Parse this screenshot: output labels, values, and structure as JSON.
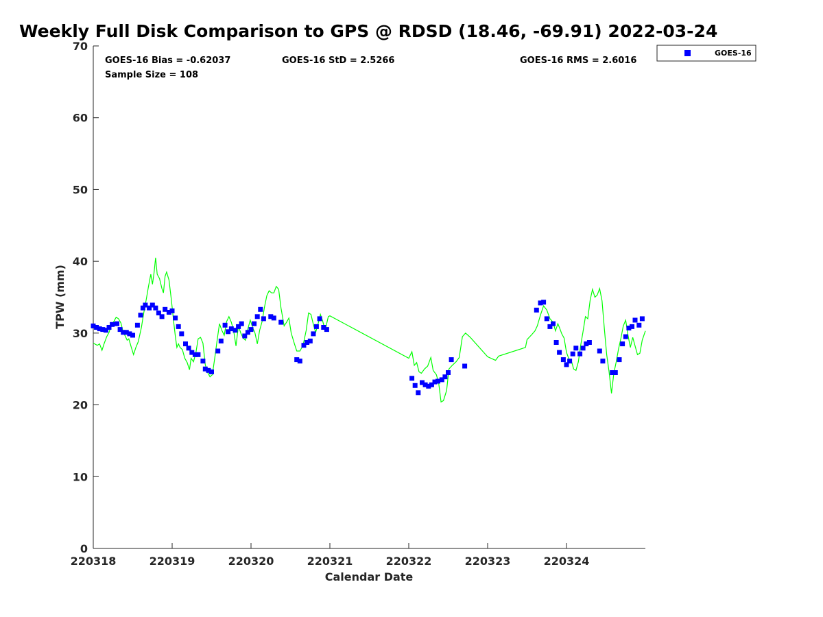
{
  "chart_data": {
    "type": "scatter",
    "title": "Weekly Full Disk Comparison to GPS @ RDSD (18.46, -69.91) 2022-03-24",
    "xlabel": "Calendar Date",
    "ylabel": "TPW (mm)",
    "ylim": [
      0,
      70
    ],
    "xlim": [
      0,
      7
    ],
    "yticks": [
      "0",
      "10",
      "20",
      "30",
      "40",
      "50",
      "60",
      "70"
    ],
    "xticks": [
      "220318",
      "220319",
      "220320",
      "220321",
      "220322",
      "220323",
      "220324"
    ],
    "stats": {
      "bias": "GOES-16 Bias = -0.62037",
      "std": "GOES-16 StD = 2.5266",
      "rms": "GOES-16 RMS = 2.6016",
      "sample": "Sample Size = 108"
    },
    "legend": {
      "position": "top-right, outside plot"
    },
    "series": [
      {
        "name": "GOES-16",
        "kind": "markers",
        "color": "#0000ff",
        "points": [
          [
            0.0,
            31.0
          ],
          [
            0.04,
            30.8
          ],
          [
            0.08,
            30.6
          ],
          [
            0.12,
            30.5
          ],
          [
            0.16,
            30.4
          ],
          [
            0.2,
            30.8
          ],
          [
            0.24,
            31.2
          ],
          [
            0.3,
            31.3
          ],
          [
            0.34,
            30.5
          ],
          [
            0.38,
            30.1
          ],
          [
            0.42,
            30.1
          ],
          [
            0.46,
            29.9
          ],
          [
            0.5,
            29.7
          ],
          [
            0.56,
            31.1
          ],
          [
            0.6,
            32.5
          ],
          [
            0.63,
            33.5
          ],
          [
            0.66,
            33.9
          ],
          [
            0.71,
            33.5
          ],
          [
            0.75,
            33.9
          ],
          [
            0.79,
            33.5
          ],
          [
            0.83,
            32.8
          ],
          [
            0.87,
            32.3
          ],
          [
            0.91,
            33.3
          ],
          [
            0.96,
            32.9
          ],
          [
            1.0,
            33.1
          ],
          [
            1.04,
            32.1
          ],
          [
            1.08,
            30.9
          ],
          [
            1.12,
            29.9
          ],
          [
            1.17,
            28.5
          ],
          [
            1.21,
            27.9
          ],
          [
            1.25,
            27.3
          ],
          [
            1.29,
            27.0
          ],
          [
            1.33,
            27.0
          ],
          [
            1.39,
            26.1
          ],
          [
            1.42,
            25.0
          ],
          [
            1.46,
            24.8
          ],
          [
            1.5,
            24.6
          ],
          [
            1.58,
            27.5
          ],
          [
            1.62,
            28.9
          ],
          [
            1.67,
            31.1
          ],
          [
            1.71,
            30.2
          ],
          [
            1.75,
            30.6
          ],
          [
            1.8,
            30.4
          ],
          [
            1.84,
            30.9
          ],
          [
            1.88,
            31.3
          ],
          [
            1.92,
            29.6
          ],
          [
            1.96,
            30.1
          ],
          [
            2.0,
            30.5
          ],
          [
            2.04,
            31.3
          ],
          [
            2.08,
            32.3
          ],
          [
            2.12,
            33.3
          ],
          [
            2.16,
            32.0
          ],
          [
            2.25,
            32.3
          ],
          [
            2.29,
            32.1
          ],
          [
            2.38,
            31.5
          ],
          [
            2.58,
            26.3
          ],
          [
            2.62,
            26.1
          ],
          [
            2.67,
            28.3
          ],
          [
            2.71,
            28.7
          ],
          [
            2.75,
            28.9
          ],
          [
            2.79,
            29.9
          ],
          [
            2.83,
            30.9
          ],
          [
            2.87,
            32.0
          ],
          [
            2.92,
            30.8
          ],
          [
            2.96,
            30.5
          ],
          [
            4.04,
            23.7
          ],
          [
            4.08,
            22.7
          ],
          [
            4.12,
            21.7
          ],
          [
            4.17,
            23.1
          ],
          [
            4.21,
            22.8
          ],
          [
            4.25,
            22.6
          ],
          [
            4.29,
            22.8
          ],
          [
            4.33,
            23.2
          ],
          [
            4.37,
            23.3
          ],
          [
            4.42,
            23.5
          ],
          [
            4.46,
            23.9
          ],
          [
            4.5,
            24.5
          ],
          [
            4.54,
            26.3
          ],
          [
            4.71,
            25.4
          ],
          [
            5.62,
            33.2
          ],
          [
            5.67,
            34.2
          ],
          [
            5.71,
            34.3
          ],
          [
            5.75,
            32.0
          ],
          [
            5.79,
            30.9
          ],
          [
            5.83,
            31.3
          ],
          [
            5.87,
            28.7
          ],
          [
            5.91,
            27.3
          ],
          [
            5.96,
            26.3
          ],
          [
            6.0,
            25.6
          ],
          [
            6.04,
            26.1
          ],
          [
            6.08,
            27.1
          ],
          [
            6.12,
            27.9
          ],
          [
            6.17,
            27.1
          ],
          [
            6.21,
            27.9
          ],
          [
            6.25,
            28.5
          ],
          [
            6.29,
            28.7
          ],
          [
            6.42,
            27.5
          ],
          [
            6.46,
            26.1
          ],
          [
            6.58,
            24.5
          ],
          [
            6.62,
            24.5
          ],
          [
            6.67,
            26.3
          ],
          [
            6.71,
            28.5
          ],
          [
            6.75,
            29.5
          ],
          [
            6.79,
            30.7
          ],
          [
            6.83,
            30.9
          ],
          [
            6.87,
            31.8
          ],
          [
            6.92,
            31.1
          ],
          [
            6.96,
            32.0
          ]
        ]
      },
      {
        "kind": "line",
        "color": "#00ff00",
        "points": [
          [
            0.0,
            28.6
          ],
          [
            0.05,
            28.3
          ],
          [
            0.08,
            28.5
          ],
          [
            0.11,
            27.6
          ],
          [
            0.14,
            28.6
          ],
          [
            0.17,
            29.5
          ],
          [
            0.2,
            30.1
          ],
          [
            0.23,
            31.2
          ],
          [
            0.26,
            31.6
          ],
          [
            0.29,
            32.2
          ],
          [
            0.32,
            32.0
          ],
          [
            0.35,
            31.4
          ],
          [
            0.38,
            30.1
          ],
          [
            0.4,
            29.7
          ],
          [
            0.43,
            29.0
          ],
          [
            0.45,
            29.2
          ],
          [
            0.48,
            28.1
          ],
          [
            0.51,
            27.0
          ],
          [
            0.54,
            28.0
          ],
          [
            0.57,
            28.8
          ],
          [
            0.61,
            30.8
          ],
          [
            0.64,
            32.8
          ],
          [
            0.67,
            34.6
          ],
          [
            0.7,
            36.5
          ],
          [
            0.73,
            38.2
          ],
          [
            0.75,
            36.8
          ],
          [
            0.77,
            38.4
          ],
          [
            0.79,
            40.5
          ],
          [
            0.81,
            38.2
          ],
          [
            0.84,
            37.6
          ],
          [
            0.87,
            36.2
          ],
          [
            0.89,
            35.6
          ],
          [
            0.91,
            37.9
          ],
          [
            0.93,
            38.5
          ],
          [
            0.96,
            37.4
          ],
          [
            0.99,
            34.6
          ],
          [
            1.02,
            31.5
          ],
          [
            1.04,
            29.6
          ],
          [
            1.06,
            28.0
          ],
          [
            1.08,
            28.5
          ],
          [
            1.1,
            28.0
          ],
          [
            1.13,
            27.7
          ],
          [
            1.16,
            26.5
          ],
          [
            1.19,
            25.9
          ],
          [
            1.22,
            24.9
          ],
          [
            1.24,
            26.5
          ],
          [
            1.27,
            26.0
          ],
          [
            1.3,
            27.2
          ],
          [
            1.33,
            29.2
          ],
          [
            1.36,
            29.4
          ],
          [
            1.39,
            28.6
          ],
          [
            1.42,
            25.6
          ],
          [
            1.45,
            24.5
          ],
          [
            1.48,
            23.9
          ],
          [
            1.51,
            24.2
          ],
          [
            1.54,
            26.5
          ],
          [
            1.57,
            29.0
          ],
          [
            1.6,
            31.3
          ],
          [
            1.63,
            30.4
          ],
          [
            1.66,
            29.7
          ],
          [
            1.69,
            31.6
          ],
          [
            1.72,
            32.3
          ],
          [
            1.75,
            31.5
          ],
          [
            1.78,
            30.3
          ],
          [
            1.81,
            28.2
          ],
          [
            1.84,
            31.0
          ],
          [
            1.87,
            30.0
          ],
          [
            1.9,
            29.3
          ],
          [
            1.93,
            29.0
          ],
          [
            1.96,
            30.6
          ],
          [
            1.99,
            31.8
          ],
          [
            2.02,
            30.8
          ],
          [
            2.05,
            30.0
          ],
          [
            2.08,
            28.5
          ],
          [
            2.11,
            30.4
          ],
          [
            2.14,
            31.6
          ],
          [
            2.17,
            33.6
          ],
          [
            2.2,
            35.2
          ],
          [
            2.23,
            35.9
          ],
          [
            2.26,
            35.6
          ],
          [
            2.29,
            35.6
          ],
          [
            2.32,
            36.5
          ],
          [
            2.35,
            36.1
          ],
          [
            2.38,
            33.5
          ],
          [
            2.42,
            31.0
          ],
          [
            2.45,
            31.5
          ],
          [
            2.48,
            32.1
          ],
          [
            2.51,
            30.0
          ],
          [
            2.55,
            28.5
          ],
          [
            2.58,
            27.5
          ],
          [
            2.62,
            27.5
          ],
          [
            2.66,
            28.3
          ],
          [
            2.7,
            30.4
          ],
          [
            2.73,
            32.8
          ],
          [
            2.76,
            32.6
          ],
          [
            2.79,
            31.2
          ],
          [
            2.82,
            30.1
          ],
          [
            2.85,
            31.3
          ],
          [
            2.88,
            32.6
          ],
          [
            2.91,
            31.6
          ],
          [
            2.94,
            30.4
          ],
          [
            2.98,
            32.3
          ],
          [
            3.0,
            32.4
          ],
          [
            4.0,
            26.5
          ],
          [
            4.04,
            27.4
          ],
          [
            4.07,
            25.5
          ],
          [
            4.1,
            25.9
          ],
          [
            4.13,
            24.6
          ],
          [
            4.16,
            24.4
          ],
          [
            4.2,
            25.0
          ],
          [
            4.24,
            25.4
          ],
          [
            4.28,
            26.6
          ],
          [
            4.31,
            24.8
          ],
          [
            4.35,
            24.2
          ],
          [
            4.38,
            23.0
          ],
          [
            4.41,
            20.4
          ],
          [
            4.44,
            20.6
          ],
          [
            4.48,
            22.0
          ],
          [
            4.51,
            25.0
          ],
          [
            4.55,
            25.5
          ],
          [
            4.6,
            26.0
          ],
          [
            4.64,
            26.6
          ],
          [
            4.68,
            29.5
          ],
          [
            4.72,
            30.0
          ],
          [
            4.78,
            29.4
          ],
          [
            5.0,
            26.7
          ],
          [
            5.1,
            26.2
          ],
          [
            5.14,
            26.8
          ],
          [
            5.48,
            28.0
          ],
          [
            5.5,
            29.1
          ],
          [
            5.56,
            29.8
          ],
          [
            5.6,
            30.3
          ],
          [
            5.63,
            31.0
          ],
          [
            5.67,
            32.5
          ],
          [
            5.71,
            33.8
          ],
          [
            5.75,
            33.2
          ],
          [
            5.79,
            32.0
          ],
          [
            5.83,
            31.5
          ],
          [
            5.86,
            30.3
          ],
          [
            5.89,
            31.3
          ],
          [
            5.91,
            30.8
          ],
          [
            5.94,
            29.9
          ],
          [
            5.97,
            29.3
          ],
          [
            6.0,
            27.3
          ],
          [
            6.03,
            26.4
          ],
          [
            6.06,
            26.2
          ],
          [
            6.09,
            25.0
          ],
          [
            6.12,
            24.8
          ],
          [
            6.15,
            26.0
          ],
          [
            6.18,
            28.3
          ],
          [
            6.21,
            30.2
          ],
          [
            6.24,
            32.3
          ],
          [
            6.27,
            32.0
          ],
          [
            6.3,
            34.6
          ],
          [
            6.33,
            36.1
          ],
          [
            6.36,
            35.0
          ],
          [
            6.39,
            35.3
          ],
          [
            6.42,
            36.2
          ],
          [
            6.45,
            34.5
          ],
          [
            6.48,
            30.6
          ],
          [
            6.51,
            27.0
          ],
          [
            6.54,
            24.6
          ],
          [
            6.57,
            21.6
          ],
          [
            6.6,
            24.4
          ],
          [
            6.63,
            26.0
          ],
          [
            6.66,
            27.8
          ],
          [
            6.69,
            29.3
          ],
          [
            6.72,
            31.0
          ],
          [
            6.75,
            31.8
          ],
          [
            6.78,
            29.7
          ],
          [
            6.81,
            28.0
          ],
          [
            6.84,
            29.4
          ],
          [
            6.87,
            28.2
          ],
          [
            6.9,
            27.0
          ],
          [
            6.93,
            27.2
          ],
          [
            6.96,
            29.0
          ],
          [
            7.0,
            30.3
          ]
        ]
      }
    ]
  }
}
